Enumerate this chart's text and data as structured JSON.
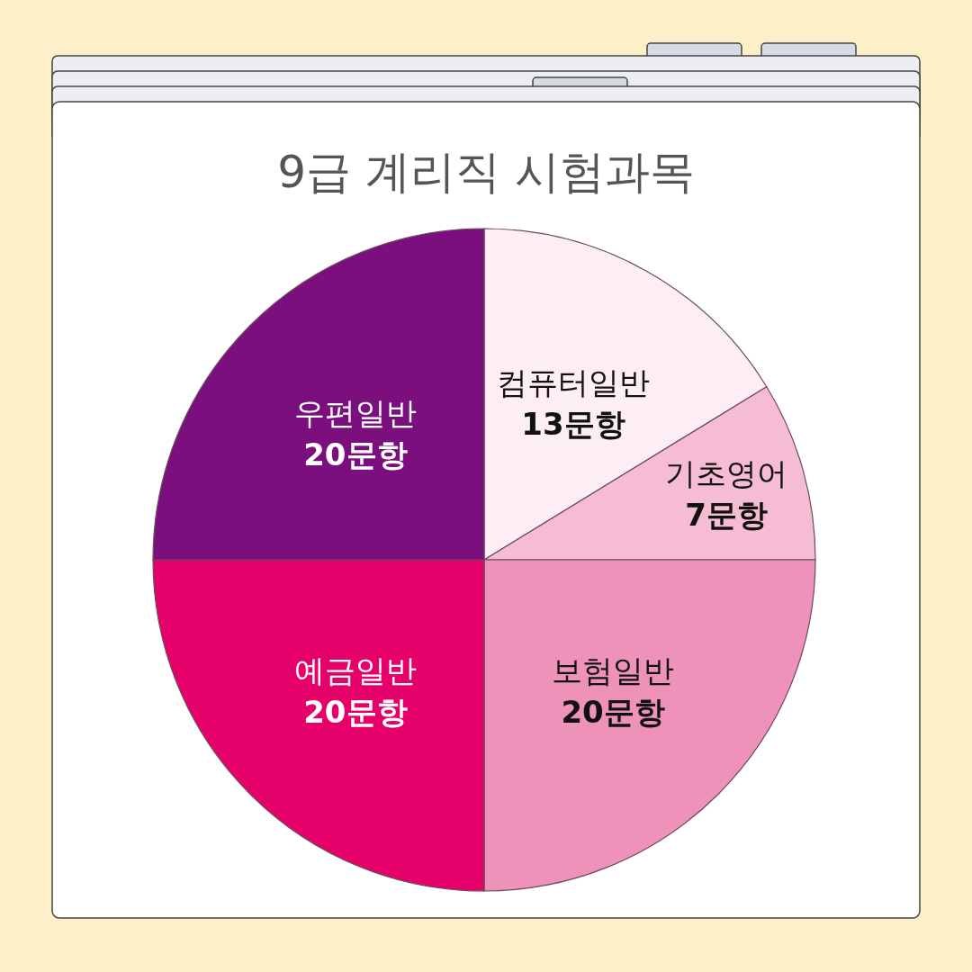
{
  "chart_data": {
    "type": "pie",
    "title": "9급 계리직 시험과목",
    "categories": [
      "컴퓨터일반",
      "기초영어",
      "보험일반",
      "예금일반",
      "우편일반"
    ],
    "values": [
      13,
      7,
      20,
      20,
      20
    ],
    "value_labels": [
      "13문항",
      "7문항",
      "20문항",
      "20문항",
      "20문항"
    ],
    "colors": [
      "#fdeef5",
      "#f5bcd4",
      "#ee92b9",
      "#e5006a",
      "#7b0f7e"
    ]
  }
}
